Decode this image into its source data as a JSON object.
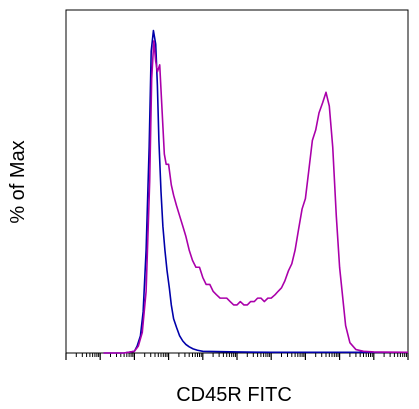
{
  "chart_data": {
    "type": "line",
    "title": "",
    "xlabel": "CD45R FITC",
    "ylabel": "% of Max",
    "x_scale": "log",
    "xlim": [
      0.001,
      10000000
    ],
    "ylim": [
      0,
      100
    ],
    "grid": false,
    "legend": "none",
    "series": [
      {
        "color": "#0000aa",
        "x": [
          0.0125,
          0.05,
          0.1,
          0.12,
          0.15,
          0.18,
          0.22,
          0.27,
          0.31,
          0.36,
          0.42,
          0.47,
          0.52,
          0.6,
          0.68,
          0.78,
          0.9,
          1.05,
          1.2,
          1.4,
          1.7,
          2.1,
          2.6,
          3.2,
          4,
          5.2,
          7,
          10,
          100,
          1000,
          100000,
          10000000
        ],
        "y": [
          0,
          0,
          0.5,
          2,
          5,
          12,
          30,
          60,
          88,
          94,
          90,
          78,
          62,
          47,
          37,
          30,
          24,
          19,
          14,
          10,
          7.5,
          5,
          3.5,
          2.5,
          1.8,
          1.2,
          0.8,
          0.5,
          0.3,
          0.2,
          0.2,
          0.2
        ]
      },
      {
        "color": "#aa00aa",
        "x": [
          0.0125,
          0.05,
          0.1,
          0.13,
          0.17,
          0.22,
          0.28,
          0.32,
          0.37,
          0.42,
          0.47,
          0.55,
          0.65,
          0.75,
          0.85,
          1.0,
          1.2,
          1.4,
          1.7,
          2.1,
          2.6,
          3.2,
          4,
          5,
          6.3,
          8,
          10,
          12.5,
          16,
          20,
          25,
          32,
          40,
          50,
          63,
          80,
          100,
          125,
          160,
          200,
          250,
          320,
          400,
          500,
          630,
          800,
          1000,
          1300,
          1600,
          2000,
          2500,
          3200,
          4000,
          5000,
          6300,
          8000,
          10000,
          12500,
          16000,
          20000,
          25000,
          32000,
          40000,
          50000,
          63000,
          80000,
          100000,
          150000,
          200000,
          300000,
          500000,
          1000000,
          10000000
        ],
        "y": [
          0,
          0,
          0.5,
          2,
          6,
          18,
          50,
          80,
          91,
          85,
          82,
          84,
          70,
          58,
          55,
          55,
          49,
          46,
          43,
          40,
          37,
          34,
          30,
          27,
          25,
          25,
          22,
          20,
          20,
          18,
          17,
          16,
          16,
          16,
          15,
          14,
          14,
          15,
          14,
          14,
          15,
          15,
          16,
          16,
          15,
          16,
          16,
          17,
          18,
          19,
          21,
          24,
          26,
          30,
          36,
          42,
          45,
          53,
          62,
          65,
          70,
          73,
          76,
          72,
          60,
          40,
          25,
          8,
          3,
          1,
          0.5,
          0.3,
          0.2
        ]
      }
    ]
  }
}
